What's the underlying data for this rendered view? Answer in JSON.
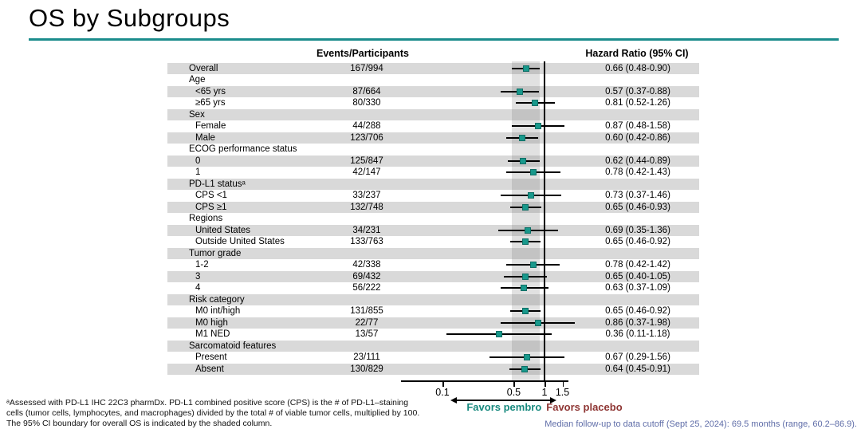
{
  "slide": {
    "title": "OS by Subgroups",
    "accent_color": "#1b8c8c",
    "teal_color": "#18988b",
    "maroon_color": "#8e3533",
    "stripe_color": "#d9d9d9",
    "note_color": "#5f6da8"
  },
  "table": {
    "events_header": "Events/Participants",
    "hr_header": "Hazard Ratio (95% CI)"
  },
  "chart_data": {
    "type": "forest",
    "x_axis": {
      "scale": "log",
      "ticks": [
        0.1,
        0.5,
        1,
        1.5
      ],
      "tick_labels": [
        "0.1",
        "0.5",
        "1",
        "1.5"
      ],
      "reference_line": 1,
      "shaded_band": [
        0.48,
        0.9
      ]
    },
    "favors_left": "Favors pembro",
    "favors_right": "Favors placebo",
    "rows": [
      {
        "label": "Overall",
        "indent": 0,
        "events": "167/994",
        "hr": 0.66,
        "lo": 0.48,
        "hi": 0.9,
        "hr_text": "0.66 (0.48-0.90)"
      },
      {
        "label": "Age",
        "indent": 0
      },
      {
        "label": "<65 yrs",
        "indent": 1,
        "events": "87/664",
        "hr": 0.57,
        "lo": 0.37,
        "hi": 0.88,
        "hr_text": "0.57 (0.37-0.88)"
      },
      {
        "label": "≥65 yrs",
        "indent": 1,
        "events": "80/330",
        "hr": 0.81,
        "lo": 0.52,
        "hi": 1.26,
        "hr_text": "0.81 (0.52-1.26)"
      },
      {
        "label": "Sex",
        "indent": 0
      },
      {
        "label": "Female",
        "indent": 1,
        "events": "44/288",
        "hr": 0.87,
        "lo": 0.48,
        "hi": 1.58,
        "hr_text": "0.87 (0.48-1.58)"
      },
      {
        "label": "Male",
        "indent": 1,
        "events": "123/706",
        "hr": 0.6,
        "lo": 0.42,
        "hi": 0.86,
        "hr_text": "0.60 (0.42-0.86)"
      },
      {
        "label": "ECOG performance status",
        "indent": 0
      },
      {
        "label": "0",
        "indent": 1,
        "events": "125/847",
        "hr": 0.62,
        "lo": 0.44,
        "hi": 0.89,
        "hr_text": "0.62 (0.44-0.89)"
      },
      {
        "label": "1",
        "indent": 1,
        "events": "42/147",
        "hr": 0.78,
        "lo": 0.42,
        "hi": 1.43,
        "hr_text": "0.78 (0.42-1.43)"
      },
      {
        "label": "PD-L1 statusᵃ",
        "indent": 0
      },
      {
        "label": "CPS <1",
        "indent": 1,
        "events": "33/237",
        "hr": 0.73,
        "lo": 0.37,
        "hi": 1.46,
        "hr_text": "0.73 (0.37-1.46)"
      },
      {
        "label": "CPS ≥1",
        "indent": 1,
        "events": "132/748",
        "hr": 0.65,
        "lo": 0.46,
        "hi": 0.93,
        "hr_text": "0.65 (0.46-0.93)"
      },
      {
        "label": "Regions",
        "indent": 0
      },
      {
        "label": "United States",
        "indent": 1,
        "events": "34/231",
        "hr": 0.69,
        "lo": 0.35,
        "hi": 1.36,
        "hr_text": "0.69 (0.35-1.36)"
      },
      {
        "label": "Outside United States",
        "indent": 1,
        "events": "133/763",
        "hr": 0.65,
        "lo": 0.46,
        "hi": 0.92,
        "hr_text": "0.65 (0.46-0.92)"
      },
      {
        "label": "Tumor grade",
        "indent": 0
      },
      {
        "label": "1-2",
        "indent": 1,
        "events": "42/338",
        "hr": 0.78,
        "lo": 0.42,
        "hi": 1.42,
        "hr_text": "0.78 (0.42-1.42)"
      },
      {
        "label": "3",
        "indent": 1,
        "events": "69/432",
        "hr": 0.65,
        "lo": 0.4,
        "hi": 1.05,
        "hr_text": "0.65 (0.40-1.05)"
      },
      {
        "label": "4",
        "indent": 1,
        "events": "56/222",
        "hr": 0.63,
        "lo": 0.37,
        "hi": 1.09,
        "hr_text": "0.63 (0.37-1.09)"
      },
      {
        "label": "Risk category",
        "indent": 0
      },
      {
        "label": "M0 int/high",
        "indent": 1,
        "events": "131/855",
        "hr": 0.65,
        "lo": 0.46,
        "hi": 0.92,
        "hr_text": "0.65 (0.46-0.92)"
      },
      {
        "label": "M0 high",
        "indent": 1,
        "events": "22/77",
        "hr": 0.86,
        "lo": 0.37,
        "hi": 1.98,
        "hr_text": "0.86 (0.37-1.98)"
      },
      {
        "label": "M1 NED",
        "indent": 1,
        "events": "13/57",
        "hr": 0.36,
        "lo": 0.11,
        "hi": 1.18,
        "hr_text": "0.36 (0.11-1.18)"
      },
      {
        "label": "Sarcomatoid features",
        "indent": 0
      },
      {
        "label": "Present",
        "indent": 1,
        "events": "23/111",
        "hr": 0.67,
        "lo": 0.29,
        "hi": 1.56,
        "hr_text": "0.67 (0.29-1.56)"
      },
      {
        "label": "Absent",
        "indent": 1,
        "events": "130/829",
        "hr": 0.64,
        "lo": 0.45,
        "hi": 0.91,
        "hr_text": "0.64 (0.45-0.91)"
      }
    ]
  },
  "footnotes": [
    "ᵃAssessed with PD-L1 IHC 22C3 pharmDx. PD-L1 combined positive score (CPS) is the # of PD-L1–staining",
    "cells (tumor cells, lymphocytes, and macrophages) divided by the total # of viable tumor cells, multiplied by 100.",
    "The 95% CI boundary for overall OS is indicated by the shaded column."
  ],
  "median_note": "Median follow-up to data cutoff (Sept 25, 2024): 69.5 months (range, 60.2–86.9)."
}
